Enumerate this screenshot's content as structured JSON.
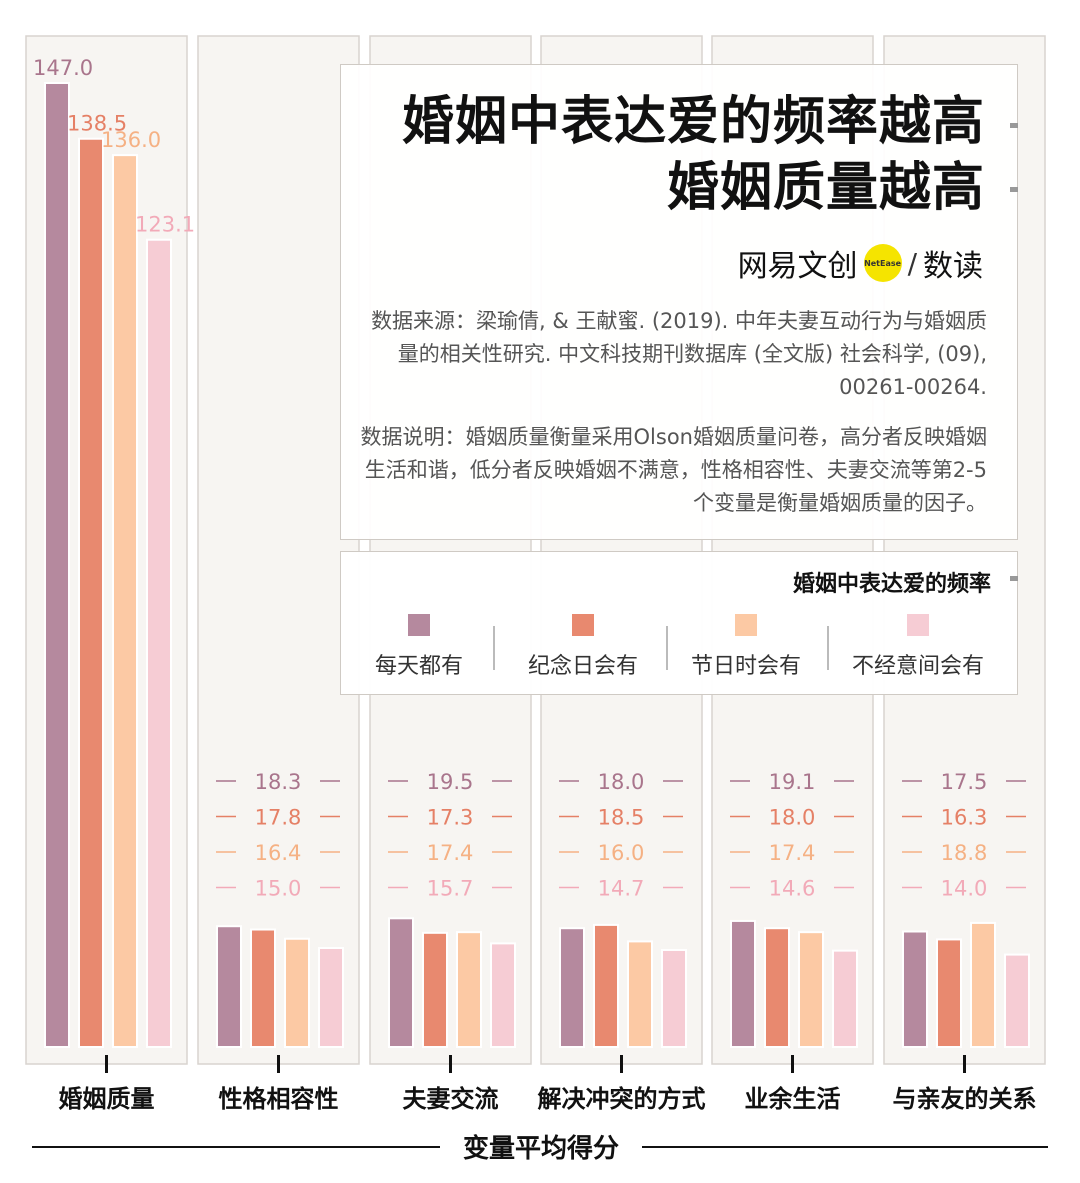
{
  "chart_data": {
    "type": "bar",
    "title": "婚姻中表达爱的频率越高 婚姻质量越高",
    "title_lines": [
      "婚姻中表达爱的频率越高",
      "婚姻质量越高"
    ],
    "xlabel": "变量平均得分",
    "categories": [
      "婚姻质量",
      "性格相容性",
      "夫妻交流",
      "解决冲突的方式",
      "业余生活",
      "与亲友的关系"
    ],
    "legend_title": "婚姻中表达爱的频率",
    "series": [
      {
        "name": "每天都有",
        "color": "#b5899e",
        "values": [
          147.0,
          18.3,
          19.5,
          18.0,
          19.1,
          17.5
        ]
      },
      {
        "name": "纪念日会有",
        "color": "#e8896f",
        "values": [
          138.5,
          17.8,
          17.3,
          18.5,
          18.0,
          16.3
        ]
      },
      {
        "name": "节日时会有",
        "color": "#fcc9a4",
        "values": [
          136.0,
          16.4,
          17.4,
          16.0,
          17.4,
          18.8
        ]
      },
      {
        "name": "不经意间会有",
        "color": "#f6ccd4",
        "values": [
          123.1,
          15.0,
          15.7,
          14.7,
          14.6,
          14.0
        ]
      }
    ],
    "ylim": [
      0,
      150
    ],
    "label_colors": [
      "#a9758c",
      "#e58066",
      "#f5b184",
      "#f2aab8"
    ]
  },
  "brand": {
    "name": "网易文创",
    "badge": "NetEase",
    "sub": "数读"
  },
  "source_note": "数据来源：梁瑜倩, & 王献蜜. (2019). 中年夫妻互动行为与婚姻质量的相关性研究. 中文科技期刊数据库 (全文版) 社会科学, (09), 00261-00264.",
  "desc_note": "数据说明：婚姻质量衡量采用Olson婚姻质量问卷，高分者反映婚姻生活和谐，低分者反映婚姻不满意，性格相容性、夫妻交流等第2-5个变量是衡量婚姻质量的因子。"
}
